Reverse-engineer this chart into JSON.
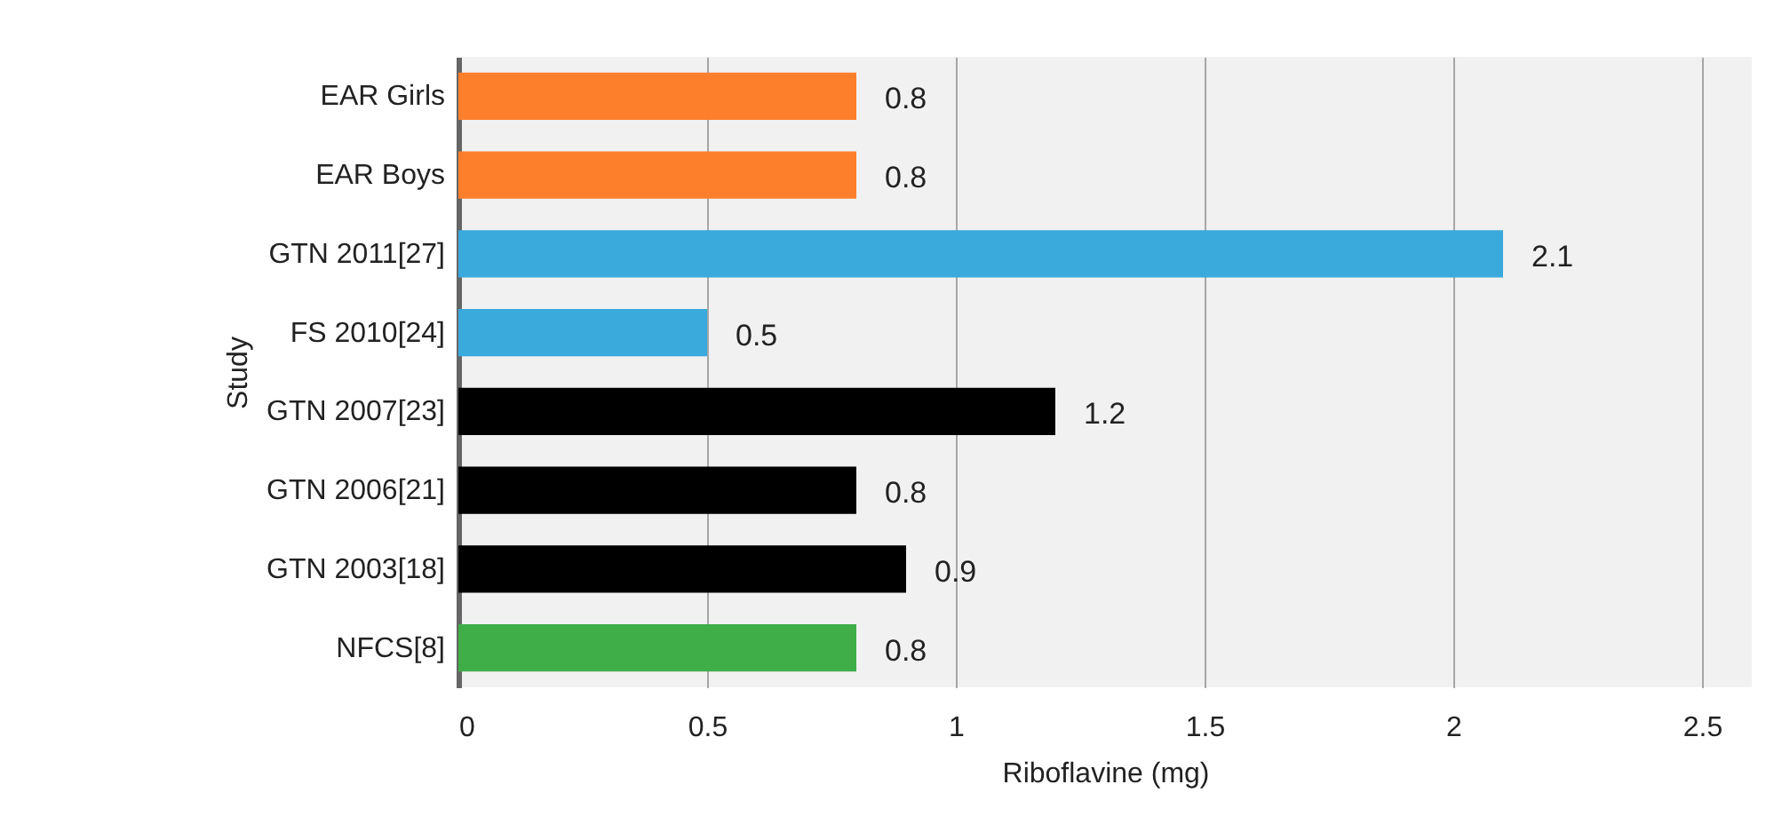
{
  "chart_data": {
    "type": "bar",
    "orientation": "horizontal",
    "xlabel": "Riboflavine (mg)",
    "ylabel": "Study",
    "categories": [
      "EAR Girls",
      "EAR Boys",
      "GTN 2011[27]",
      "FS 2010[24]",
      "GTN 2007[23]",
      "GTN 2006[21]",
      "GTN 2003[18]",
      "NFCS[8]"
    ],
    "values": [
      0.8,
      0.8,
      2.1,
      0.5,
      1.2,
      0.8,
      0.9,
      0.8
    ],
    "colors": [
      "#fd7f2c",
      "#fd7f2c",
      "#3aa9dc",
      "#3aa9dc",
      "#000000",
      "#000000",
      "#000000",
      "#3fae49"
    ],
    "xlim": [
      0,
      2.6
    ],
    "xticks": [
      0,
      0.5,
      1,
      1.5,
      2,
      2.5
    ],
    "grid": "x",
    "data_labels": true
  }
}
